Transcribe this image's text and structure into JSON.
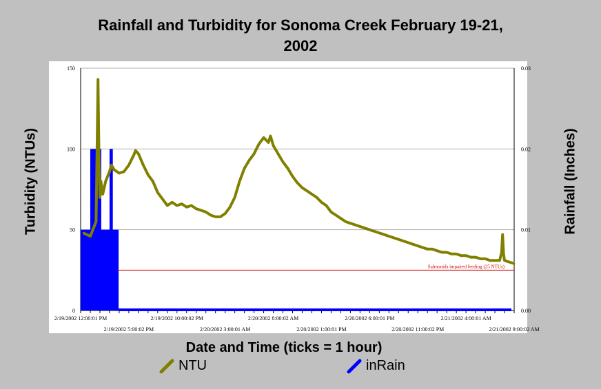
{
  "chart_data": {
    "type": "line",
    "title_line1": "Rainfall and Turbidity for Sonoma Creek February 19-21,",
    "title_line2": "2002",
    "xlabel": "Date and Time (ticks = 1 hour)",
    "ylabel_left": "Turbidity (NTUs)",
    "ylabel_right": "Rainfall (Inches)",
    "y_left_ticks": [
      "150",
      "100",
      "50",
      "0"
    ],
    "y_left_lim": [
      0,
      150
    ],
    "y_right_ticks": [
      "0.03",
      "0.02",
      "0.01",
      "0.00"
    ],
    "y_right_lim": [
      0,
      0.03
    ],
    "x_range_hours": [
      0,
      45
    ],
    "x_ticks_upper": [
      {
        "h": 0,
        "label": "2/19/2002 12:00:01 PM"
      },
      {
        "h": 10,
        "label": "2/19/2002 10:00:02 PM"
      },
      {
        "h": 20,
        "label": "2/20/2002 8:00:02 AM"
      },
      {
        "h": 30,
        "label": "2/20/2002 6:00:01 PM"
      },
      {
        "h": 40,
        "label": "2/21/2002 4:00:01 AM"
      }
    ],
    "x_ticks_lower": [
      {
        "h": 5,
        "label": "2/19/2002 5:00:02 PM"
      },
      {
        "h": 15,
        "label": "2/20/2002 3:00:01 AM"
      },
      {
        "h": 25,
        "label": "2/20/2002 1:00:01 PM"
      },
      {
        "h": 35,
        "label": "2/20/2002 11:00:02 PM"
      },
      {
        "h": 45,
        "label": "2/21/2002 9:00:02 AM"
      }
    ],
    "threshold": {
      "value": 25,
      "label": "Salmonids impaired feeding (25 NTUs)",
      "color": "#cc0000"
    },
    "series": [
      {
        "name": "NTU",
        "color": "#808000",
        "axis": "left",
        "points": [
          [
            0.3,
            48
          ],
          [
            1,
            46
          ],
          [
            1.6,
            55
          ],
          [
            1.75,
            120
          ],
          [
            1.8,
            143
          ],
          [
            1.9,
            95
          ],
          [
            2.0,
            70
          ],
          [
            2.1,
            80
          ],
          [
            2.3,
            72
          ],
          [
            2.6,
            80
          ],
          [
            3.0,
            86
          ],
          [
            3.2,
            90
          ],
          [
            3.5,
            87
          ],
          [
            4.0,
            85
          ],
          [
            4.5,
            86
          ],
          [
            5.0,
            90
          ],
          [
            5.5,
            96
          ],
          [
            5.7,
            99
          ],
          [
            6.0,
            97
          ],
          [
            6.5,
            90
          ],
          [
            7.0,
            84
          ],
          [
            7.5,
            80
          ],
          [
            8.0,
            73
          ],
          [
            8.5,
            69
          ],
          [
            9.0,
            65
          ],
          [
            9.5,
            67
          ],
          [
            10.0,
            65
          ],
          [
            10.5,
            66
          ],
          [
            11.0,
            64
          ],
          [
            11.5,
            65
          ],
          [
            12.0,
            63
          ],
          [
            12.5,
            62
          ],
          [
            13.0,
            61
          ],
          [
            13.5,
            59
          ],
          [
            14.0,
            58
          ],
          [
            14.5,
            58
          ],
          [
            15.0,
            60
          ],
          [
            15.5,
            64
          ],
          [
            16.0,
            70
          ],
          [
            16.5,
            80
          ],
          [
            17.0,
            88
          ],
          [
            17.5,
            93
          ],
          [
            18.0,
            97
          ],
          [
            18.5,
            103
          ],
          [
            19.0,
            107
          ],
          [
            19.5,
            104
          ],
          [
            19.7,
            108
          ],
          [
            20.0,
            102
          ],
          [
            20.5,
            97
          ],
          [
            21.0,
            92
          ],
          [
            21.5,
            88
          ],
          [
            22.0,
            83
          ],
          [
            22.5,
            79
          ],
          [
            23.0,
            76
          ],
          [
            23.5,
            74
          ],
          [
            24.0,
            72
          ],
          [
            24.5,
            70
          ],
          [
            25.0,
            67
          ],
          [
            25.5,
            65
          ],
          [
            26.0,
            61
          ],
          [
            26.5,
            59
          ],
          [
            27.0,
            57
          ],
          [
            27.5,
            55
          ],
          [
            28.0,
            54
          ],
          [
            28.5,
            53
          ],
          [
            29.0,
            52
          ],
          [
            29.5,
            51
          ],
          [
            30.0,
            50
          ],
          [
            30.5,
            49
          ],
          [
            31.0,
            48
          ],
          [
            31.5,
            47
          ],
          [
            32.0,
            46
          ],
          [
            32.5,
            45
          ],
          [
            33.0,
            44
          ],
          [
            33.5,
            43
          ],
          [
            34.0,
            42
          ],
          [
            34.5,
            41
          ],
          [
            35.0,
            40
          ],
          [
            35.5,
            39
          ],
          [
            36.0,
            38
          ],
          [
            36.5,
            38
          ],
          [
            37.0,
            37
          ],
          [
            37.5,
            36
          ],
          [
            38.0,
            36
          ],
          [
            38.5,
            35
          ],
          [
            39.0,
            35
          ],
          [
            39.5,
            34
          ],
          [
            40.0,
            34
          ],
          [
            40.5,
            33
          ],
          [
            41.0,
            33
          ],
          [
            41.5,
            32
          ],
          [
            42.0,
            32
          ],
          [
            42.5,
            31
          ],
          [
            43.0,
            31
          ],
          [
            43.5,
            31
          ],
          [
            43.7,
            36
          ],
          [
            43.8,
            47
          ],
          [
            43.9,
            35
          ],
          [
            44.0,
            31
          ],
          [
            44.5,
            30
          ],
          [
            45.0,
            29
          ]
        ]
      },
      {
        "name": "inRain",
        "color": "#0000ff",
        "axis": "right",
        "bars": [
          [
            0.0,
            0.01
          ],
          [
            0.3,
            0.01
          ],
          [
            0.6,
            0.01
          ],
          [
            0.9,
            0.01
          ],
          [
            1.0,
            0.02
          ],
          [
            1.2,
            0.02
          ],
          [
            1.4,
            0.02
          ],
          [
            1.6,
            0.02
          ],
          [
            1.8,
            0.02
          ],
          [
            2.0,
            0.01
          ],
          [
            2.2,
            0.01
          ],
          [
            2.5,
            0.01
          ],
          [
            2.8,
            0.01
          ],
          [
            3.0,
            0.02
          ],
          [
            3.2,
            0.01
          ],
          [
            3.4,
            0.01
          ],
          [
            3.6,
            0.01
          ]
        ]
      }
    ],
    "legend_position": "bottom"
  }
}
